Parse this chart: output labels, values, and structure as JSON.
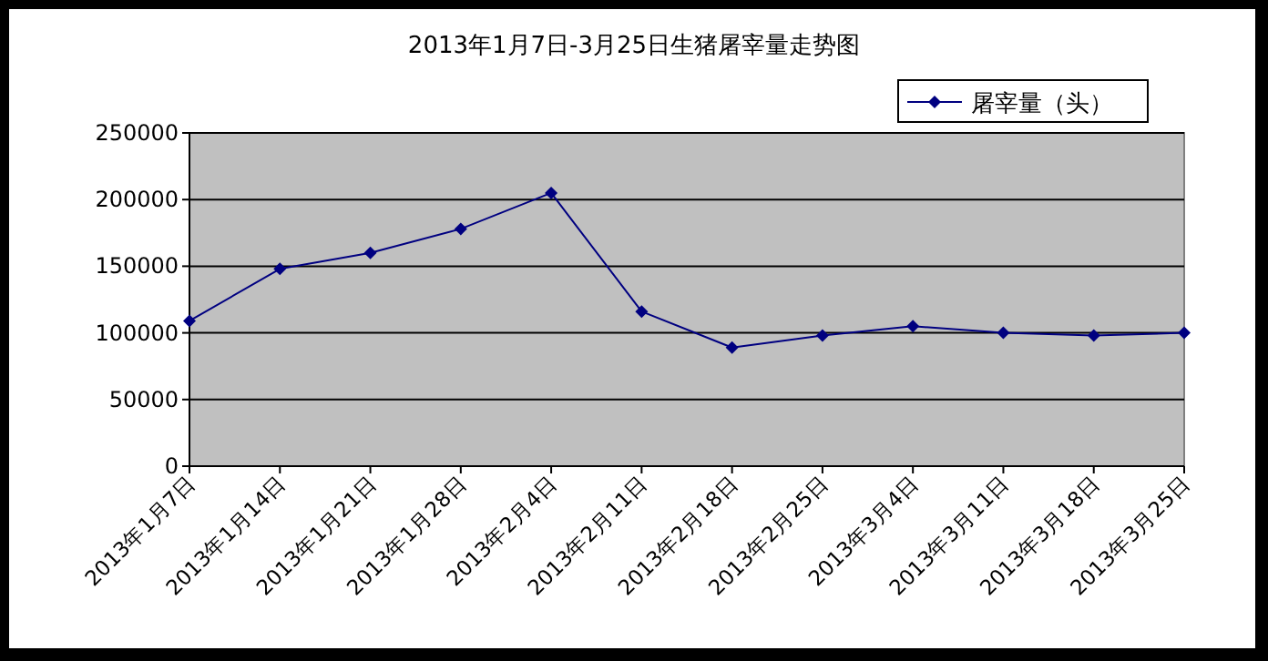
{
  "chart_data": {
    "type": "line",
    "title": "2013年1月7日-3月25日生猪屠宰量走势图",
    "categories": [
      "2013年1月7日",
      "2013年1月14日",
      "2013年1月21日",
      "2013年1月28日",
      "2013年2月4日",
      "2013年2月11日",
      "2013年2月18日",
      "2013年2月25日",
      "2013年3月4日",
      "2013年3月11日",
      "2013年3月18日",
      "2013年3月25日"
    ],
    "series": [
      {
        "name": "屠宰量（头）",
        "color": "#000080",
        "values": [
          109000,
          148000,
          160000,
          178000,
          205000,
          116000,
          89000,
          98000,
          105000,
          100000,
          98000,
          100000
        ]
      }
    ],
    "ylim": [
      0,
      250000
    ],
    "yticks": [
      0,
      50000,
      100000,
      150000,
      200000,
      250000
    ],
    "grid": "y",
    "legend": "top right",
    "marker": "diamond",
    "line_style": "solid"
  }
}
